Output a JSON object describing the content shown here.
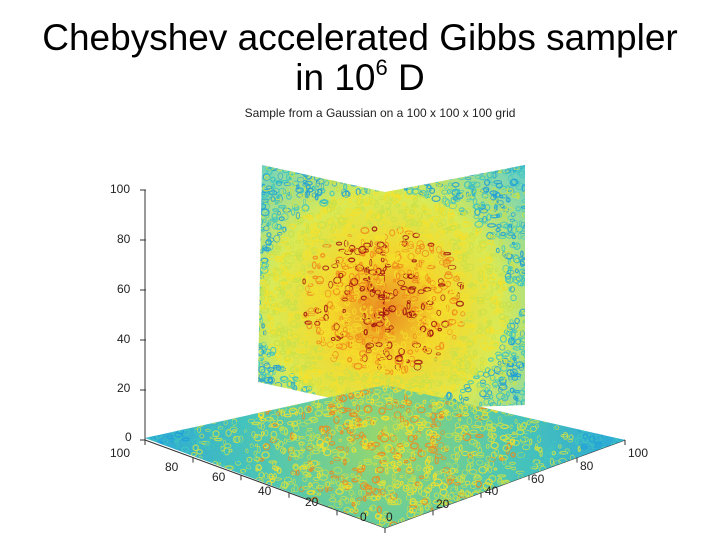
{
  "slide": {
    "title_line1": "Chebyshev accelerated Gibbs sampler",
    "title_line2_prefix": "in 10",
    "title_line2_exponent": "6",
    "title_line2_suffix": " D"
  },
  "figure": {
    "title": "Sample from a Gaussian on a 100 x 100 x 100 grid",
    "z_ticks": [
      "100",
      "80",
      "60",
      "40",
      "20",
      "0"
    ],
    "x_ticks": [
      "100",
      "80",
      "60",
      "40",
      "20",
      "0"
    ],
    "y_ticks": [
      "0",
      "20",
      "40",
      "60",
      "80",
      "100"
    ],
    "colors": {
      "low": "#1f9fd8",
      "mid_low": "#3fc6c0",
      "mid": "#c8e04a",
      "mid_high": "#f5e12b",
      "high": "#f08a1c",
      "peak": "#a01010"
    }
  }
}
